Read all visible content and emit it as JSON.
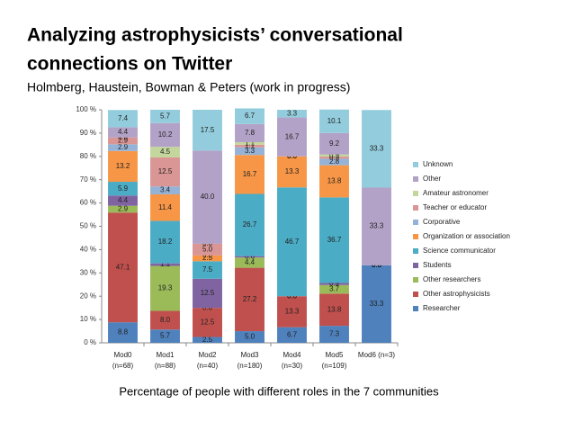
{
  "chart_data": {
    "type": "stacked_bar",
    "title_lines": [
      "Analyzing astrophysicists’ conversational",
      "connections on Twitter"
    ],
    "subtitle": "Holmberg, Haustein, Bowman & Peters (work in progress)",
    "caption": "Percentage of people with different roles in the 7 communities",
    "categories": [
      "Mod0 (n=68)",
      "Mod1 (n=88)",
      "Mod2 (n=40)",
      "Mod3 (n=180)",
      "Mod4 (n=30)",
      "Mod5 (n=109)",
      "Mod6 (n=3)"
    ],
    "ylim": [
      0,
      100
    ],
    "yticks": [
      {
        "value": 0,
        "label": "0 %"
      },
      {
        "value": 10,
        "label": "10 %"
      },
      {
        "value": 20,
        "label": "20 %"
      },
      {
        "value": 30,
        "label": "30 %"
      },
      {
        "value": 40,
        "label": "40 %"
      },
      {
        "value": 50,
        "label": "50 %"
      },
      {
        "value": 60,
        "label": "60 %"
      },
      {
        "value": 70,
        "label": "70 %"
      },
      {
        "value": 80,
        "label": "80 %"
      },
      {
        "value": 90,
        "label": "90 %"
      },
      {
        "value": 100,
        "label": "100 %"
      }
    ],
    "legend": "right",
    "series": [
      {
        "name": "Researcher",
        "color": "#4f81bd",
        "values": [
          8.8,
          5.7,
          2.5,
          5.0,
          6.7,
          7.3,
          33.3
        ],
        "value_labels": [
          "8.8",
          "5.7",
          "2.5",
          "5.0",
          "6.7",
          "7.3",
          "33.3"
        ]
      },
      {
        "name": "Other astrophysicists",
        "color": "#c0504d",
        "values": [
          47.1,
          8.0,
          12.5,
          27.2,
          13.3,
          13.8,
          0
        ],
        "value_labels": [
          "47.1",
          "8.0",
          "12.5",
          "27.2",
          "13.3",
          "13.8",
          "0.0"
        ]
      },
      {
        "name": "Other researchers",
        "color": "#9bbb59",
        "values": [
          2.9,
          19.3,
          0,
          4.4,
          0,
          3.7,
          0
        ],
        "value_labels": [
          "2.9",
          "19.3",
          "0.0",
          "4.4",
          "0.0",
          "3.7",
          "0.0"
        ]
      },
      {
        "name": "Students",
        "color": "#8064a2",
        "values": [
          4.4,
          1.1,
          12.5,
          0.6,
          0,
          0.9,
          0
        ],
        "value_labels": [
          "4.4",
          "1.1",
          "12.5",
          "0.6",
          "0.0",
          "0.9",
          "0.0"
        ]
      },
      {
        "name": "Science communicator",
        "color": "#4bacc6",
        "values": [
          5.9,
          18.2,
          7.5,
          26.7,
          46.7,
          36.7,
          0
        ],
        "value_labels": [
          "5.9",
          "18.2",
          "7.5",
          "26.7",
          "46.7",
          "36.7",
          "0.0"
        ]
      },
      {
        "name": "Organization or association",
        "color": "#f79646",
        "values": [
          13.2,
          11.4,
          2.5,
          16.7,
          13.3,
          13.8,
          0
        ],
        "value_labels": [
          "13.2",
          "11.4",
          "2.5",
          "16.7",
          "13.3",
          "13.8",
          "0.0"
        ]
      },
      {
        "name": "Corporative",
        "color": "#95b3d7",
        "values": [
          2.9,
          3.4,
          0,
          3.3,
          0,
          2.8,
          0
        ],
        "value_labels": [
          "2.9",
          "3.4",
          "0.0",
          "3.3",
          "0.0",
          "2.8",
          "0.0"
        ]
      },
      {
        "name": "Teacher or educator",
        "color": "#d99694",
        "values": [
          2.9,
          12.5,
          5.0,
          1.1,
          0,
          0.9,
          0
        ],
        "value_labels": [
          "2.9",
          "12.5",
          "5.0",
          "1.1",
          "0.0",
          "0.9",
          "0.0"
        ]
      },
      {
        "name": "Amateur astronomer",
        "color": "#c3d69b",
        "values": [
          0,
          4.5,
          0,
          1.1,
          0,
          0.9,
          0
        ],
        "value_labels": [
          "0.0",
          "4.5",
          "0.0",
          "1.1",
          "0.0",
          "0.9",
          "0.0"
        ]
      },
      {
        "name": "Other",
        "color": "#b3a2c7",
        "values": [
          4.4,
          10.2,
          40.0,
          7.8,
          16.7,
          9.2,
          33.3
        ],
        "value_labels": [
          "4.4",
          "10.2",
          "40.0",
          "7.8",
          "16.7",
          "9.2",
          "33.3"
        ]
      },
      {
        "name": "Unknown",
        "color": "#93cddd",
        "values": [
          7.4,
          5.7,
          17.5,
          6.7,
          3.3,
          10.1,
          33.3
        ],
        "value_labels": [
          "7.4",
          "5.7",
          "17.5",
          "6.7",
          "3.3",
          "10.1",
          "33.3"
        ]
      }
    ]
  }
}
